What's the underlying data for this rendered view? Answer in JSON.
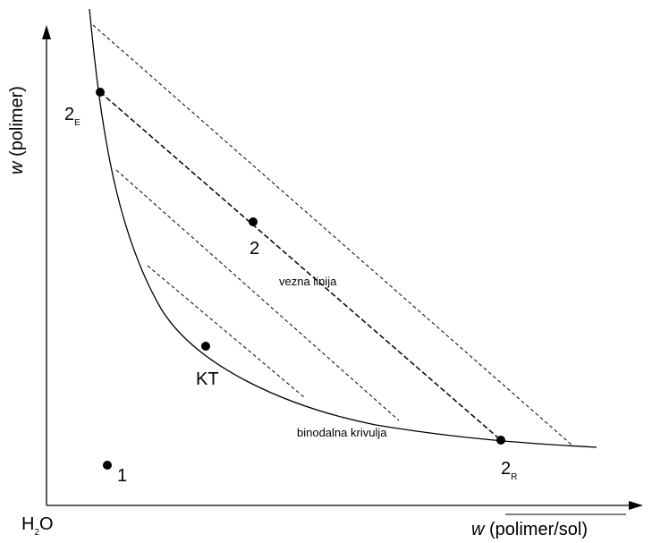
{
  "labels": {
    "origin": "H",
    "origin_sub": "2",
    "origin_tail": "O",
    "y_axis_var": "w",
    "y_axis_rest": " (polimer)",
    "x_axis_var": "w",
    "x_axis_rest": " (polimer/sol)",
    "point_2E_main": "2",
    "point_2E_sub": "E",
    "point_2": "2",
    "point_2R_main": "2",
    "point_2R_sub": "R",
    "point_1": "1",
    "point_KT": "KT",
    "tie_line": "vezna linija",
    "binodal": "binodalna krivulja"
  },
  "colors": {
    "ink": "#000000",
    "background": "#ffffff"
  }
}
